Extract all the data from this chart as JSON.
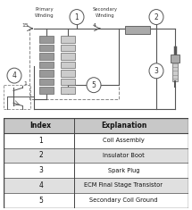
{
  "bg_color": "#ffffff",
  "table_headers": [
    "Index",
    "Explanation"
  ],
  "table_rows": [
    [
      "1",
      "Coil Assembly"
    ],
    [
      "2",
      "Insulator Boot"
    ],
    [
      "3",
      "Spark Plug"
    ],
    [
      "4",
      "ECM Final Stage Transistor"
    ],
    [
      "5",
      "Secondary Coil Ground"
    ]
  ],
  "table_row_colors": [
    "#ffffff",
    "#e0e0e0",
    "#ffffff",
    "#e0e0e0",
    "#ffffff"
  ],
  "header_color": "#c8c8c8",
  "border_color": "#444444",
  "line_color": "#555555",
  "circle_color": "#ffffff",
  "circle_edge": "#555555",
  "text_color": "#333333",
  "dashed_color": "#888888",
  "coil_fill_dark": "#999999",
  "coil_fill_light": "#cccccc",
  "boot_fill": "#aaaaaa",
  "spark_fill": "#bbbbbb"
}
